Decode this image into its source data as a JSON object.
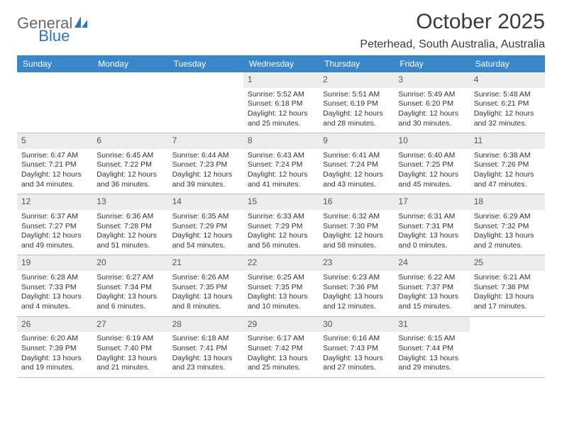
{
  "branding": {
    "logo_part1": "General",
    "logo_part2": "Blue"
  },
  "header": {
    "title": "October 2025",
    "location": "Peterhead, South Australia, Australia"
  },
  "style": {
    "header_bg": "#3a87c7",
    "header_text": "#ffffff",
    "daynum_bg": "#ececec",
    "border_color": "#bfbfbf",
    "body_text": "#333333"
  },
  "day_names": [
    "Sunday",
    "Monday",
    "Tuesday",
    "Wednesday",
    "Thursday",
    "Friday",
    "Saturday"
  ],
  "weeks": [
    [
      {
        "empty": true
      },
      {
        "empty": true
      },
      {
        "empty": true
      },
      {
        "day": "1",
        "sunrise": "Sunrise: 5:52 AM",
        "sunset": "Sunset: 6:18 PM",
        "daylight1": "Daylight: 12 hours",
        "daylight2": "and 25 minutes."
      },
      {
        "day": "2",
        "sunrise": "Sunrise: 5:51 AM",
        "sunset": "Sunset: 6:19 PM",
        "daylight1": "Daylight: 12 hours",
        "daylight2": "and 28 minutes."
      },
      {
        "day": "3",
        "sunrise": "Sunrise: 5:49 AM",
        "sunset": "Sunset: 6:20 PM",
        "daylight1": "Daylight: 12 hours",
        "daylight2": "and 30 minutes."
      },
      {
        "day": "4",
        "sunrise": "Sunrise: 5:48 AM",
        "sunset": "Sunset: 6:21 PM",
        "daylight1": "Daylight: 12 hours",
        "daylight2": "and 32 minutes."
      }
    ],
    [
      {
        "day": "5",
        "sunrise": "Sunrise: 6:47 AM",
        "sunset": "Sunset: 7:21 PM",
        "daylight1": "Daylight: 12 hours",
        "daylight2": "and 34 minutes."
      },
      {
        "day": "6",
        "sunrise": "Sunrise: 6:45 AM",
        "sunset": "Sunset: 7:22 PM",
        "daylight1": "Daylight: 12 hours",
        "daylight2": "and 36 minutes."
      },
      {
        "day": "7",
        "sunrise": "Sunrise: 6:44 AM",
        "sunset": "Sunset: 7:23 PM",
        "daylight1": "Daylight: 12 hours",
        "daylight2": "and 39 minutes."
      },
      {
        "day": "8",
        "sunrise": "Sunrise: 6:43 AM",
        "sunset": "Sunset: 7:24 PM",
        "daylight1": "Daylight: 12 hours",
        "daylight2": "and 41 minutes."
      },
      {
        "day": "9",
        "sunrise": "Sunrise: 6:41 AM",
        "sunset": "Sunset: 7:24 PM",
        "daylight1": "Daylight: 12 hours",
        "daylight2": "and 43 minutes."
      },
      {
        "day": "10",
        "sunrise": "Sunrise: 6:40 AM",
        "sunset": "Sunset: 7:25 PM",
        "daylight1": "Daylight: 12 hours",
        "daylight2": "and 45 minutes."
      },
      {
        "day": "11",
        "sunrise": "Sunrise: 6:38 AM",
        "sunset": "Sunset: 7:26 PM",
        "daylight1": "Daylight: 12 hours",
        "daylight2": "and 47 minutes."
      }
    ],
    [
      {
        "day": "12",
        "sunrise": "Sunrise: 6:37 AM",
        "sunset": "Sunset: 7:27 PM",
        "daylight1": "Daylight: 12 hours",
        "daylight2": "and 49 minutes."
      },
      {
        "day": "13",
        "sunrise": "Sunrise: 6:36 AM",
        "sunset": "Sunset: 7:28 PM",
        "daylight1": "Daylight: 12 hours",
        "daylight2": "and 51 minutes."
      },
      {
        "day": "14",
        "sunrise": "Sunrise: 6:35 AM",
        "sunset": "Sunset: 7:29 PM",
        "daylight1": "Daylight: 12 hours",
        "daylight2": "and 54 minutes."
      },
      {
        "day": "15",
        "sunrise": "Sunrise: 6:33 AM",
        "sunset": "Sunset: 7:29 PM",
        "daylight1": "Daylight: 12 hours",
        "daylight2": "and 56 minutes."
      },
      {
        "day": "16",
        "sunrise": "Sunrise: 6:32 AM",
        "sunset": "Sunset: 7:30 PM",
        "daylight1": "Daylight: 12 hours",
        "daylight2": "and 58 minutes."
      },
      {
        "day": "17",
        "sunrise": "Sunrise: 6:31 AM",
        "sunset": "Sunset: 7:31 PM",
        "daylight1": "Daylight: 13 hours",
        "daylight2": "and 0 minutes."
      },
      {
        "day": "18",
        "sunrise": "Sunrise: 6:29 AM",
        "sunset": "Sunset: 7:32 PM",
        "daylight1": "Daylight: 13 hours",
        "daylight2": "and 2 minutes."
      }
    ],
    [
      {
        "day": "19",
        "sunrise": "Sunrise: 6:28 AM",
        "sunset": "Sunset: 7:33 PM",
        "daylight1": "Daylight: 13 hours",
        "daylight2": "and 4 minutes."
      },
      {
        "day": "20",
        "sunrise": "Sunrise: 6:27 AM",
        "sunset": "Sunset: 7:34 PM",
        "daylight1": "Daylight: 13 hours",
        "daylight2": "and 6 minutes."
      },
      {
        "day": "21",
        "sunrise": "Sunrise: 6:26 AM",
        "sunset": "Sunset: 7:35 PM",
        "daylight1": "Daylight: 13 hours",
        "daylight2": "and 8 minutes."
      },
      {
        "day": "22",
        "sunrise": "Sunrise: 6:25 AM",
        "sunset": "Sunset: 7:35 PM",
        "daylight1": "Daylight: 13 hours",
        "daylight2": "and 10 minutes."
      },
      {
        "day": "23",
        "sunrise": "Sunrise: 6:23 AM",
        "sunset": "Sunset: 7:36 PM",
        "daylight1": "Daylight: 13 hours",
        "daylight2": "and 12 minutes."
      },
      {
        "day": "24",
        "sunrise": "Sunrise: 6:22 AM",
        "sunset": "Sunset: 7:37 PM",
        "daylight1": "Daylight: 13 hours",
        "daylight2": "and 15 minutes."
      },
      {
        "day": "25",
        "sunrise": "Sunrise: 6:21 AM",
        "sunset": "Sunset: 7:38 PM",
        "daylight1": "Daylight: 13 hours",
        "daylight2": "and 17 minutes."
      }
    ],
    [
      {
        "day": "26",
        "sunrise": "Sunrise: 6:20 AM",
        "sunset": "Sunset: 7:39 PM",
        "daylight1": "Daylight: 13 hours",
        "daylight2": "and 19 minutes."
      },
      {
        "day": "27",
        "sunrise": "Sunrise: 6:19 AM",
        "sunset": "Sunset: 7:40 PM",
        "daylight1": "Daylight: 13 hours",
        "daylight2": "and 21 minutes."
      },
      {
        "day": "28",
        "sunrise": "Sunrise: 6:18 AM",
        "sunset": "Sunset: 7:41 PM",
        "daylight1": "Daylight: 13 hours",
        "daylight2": "and 23 minutes."
      },
      {
        "day": "29",
        "sunrise": "Sunrise: 6:17 AM",
        "sunset": "Sunset: 7:42 PM",
        "daylight1": "Daylight: 13 hours",
        "daylight2": "and 25 minutes."
      },
      {
        "day": "30",
        "sunrise": "Sunrise: 6:16 AM",
        "sunset": "Sunset: 7:43 PM",
        "daylight1": "Daylight: 13 hours",
        "daylight2": "and 27 minutes."
      },
      {
        "day": "31",
        "sunrise": "Sunrise: 6:15 AM",
        "sunset": "Sunset: 7:44 PM",
        "daylight1": "Daylight: 13 hours",
        "daylight2": "and 29 minutes."
      },
      {
        "empty": true
      }
    ]
  ]
}
